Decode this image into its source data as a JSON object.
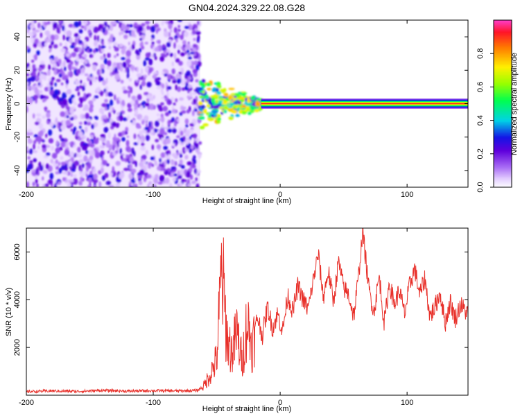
{
  "title": "GN04.2024.329.22.08.G28",
  "chart_data": [
    {
      "type": "heatmap",
      "xlabel": "Height of straight line (km)",
      "ylabel": "Frequency (Hz)",
      "xlim": [
        -200,
        148
      ],
      "ylim": [
        -50,
        50
      ],
      "xticks": [
        -200,
        -100,
        0,
        100
      ],
      "yticks": [
        -40,
        -20,
        0,
        20,
        40
      ],
      "colorbar": {
        "label": "Normalized spectral amplitude",
        "range": [
          0,
          1
        ],
        "ticks": [
          0.0,
          0.2,
          0.4,
          0.6,
          0.8
        ],
        "tick_labels": [
          "0.0",
          "0.2",
          "0.4",
          "0.6",
          "0.8"
        ],
        "colormap": "gist_ncar-like"
      },
      "regions": [
        {
          "x": [
            -200,
            -63
          ],
          "y": [
            -50,
            50
          ],
          "amplitude": [
            0.05,
            0.3
          ],
          "note": "scattered noise"
        },
        {
          "x": [
            -63,
            -15
          ],
          "y": [
            -15,
            15
          ],
          "amplitude": [
            0.2,
            0.8
          ],
          "note": "converging signal"
        },
        {
          "x": [
            -15,
            148
          ],
          "y": [
            -3,
            3
          ],
          "amplitude": [
            0.5,
            0.98
          ],
          "note": "steady line near 0 Hz"
        }
      ]
    },
    {
      "type": "line",
      "xlabel": "Height of straight line (km)",
      "ylabel": "SNR (10 * v/v)",
      "xlim": [
        -200,
        148
      ],
      "ylim": [
        0,
        7000
      ],
      "xticks": [
        -200,
        -100,
        0,
        100
      ],
      "yticks": [
        2000,
        4000,
        6000
      ],
      "color": "#e8302a",
      "series": [
        {
          "x": [
            -200,
            -180,
            -160,
            -140,
            -120,
            -100,
            -80,
            -65,
            -60,
            -55,
            -50,
            -46,
            -42,
            -38,
            -34,
            -30,
            -26,
            -22,
            -18,
            -14,
            -10,
            -6,
            -2,
            2,
            6,
            10,
            14,
            18,
            22,
            26,
            30,
            34,
            38,
            42,
            46,
            50,
            54,
            58,
            62,
            65,
            70,
            74,
            78,
            82,
            86,
            90,
            94,
            98,
            102,
            106,
            110,
            114,
            118,
            122,
            126,
            130,
            134,
            138,
            142,
            148
          ],
          "values": [
            150,
            180,
            160,
            200,
            170,
            190,
            180,
            200,
            400,
            900,
            1500,
            5300,
            2400,
            1800,
            2600,
            1400,
            3100,
            2000,
            3300,
            2500,
            3700,
            2800,
            3400,
            2700,
            4200,
            3500,
            4600,
            4000,
            3600,
            4800,
            5900,
            4100,
            5200,
            3900,
            5600,
            4500,
            4200,
            3300,
            5100,
            6900,
            4400,
            3500,
            5000,
            3000,
            4700,
            3800,
            4400,
            3400,
            4600,
            5300,
            4200,
            4900,
            3300,
            3700,
            4300,
            3000,
            3900,
            3200,
            3800,
            3400
          ]
        }
      ]
    }
  ]
}
